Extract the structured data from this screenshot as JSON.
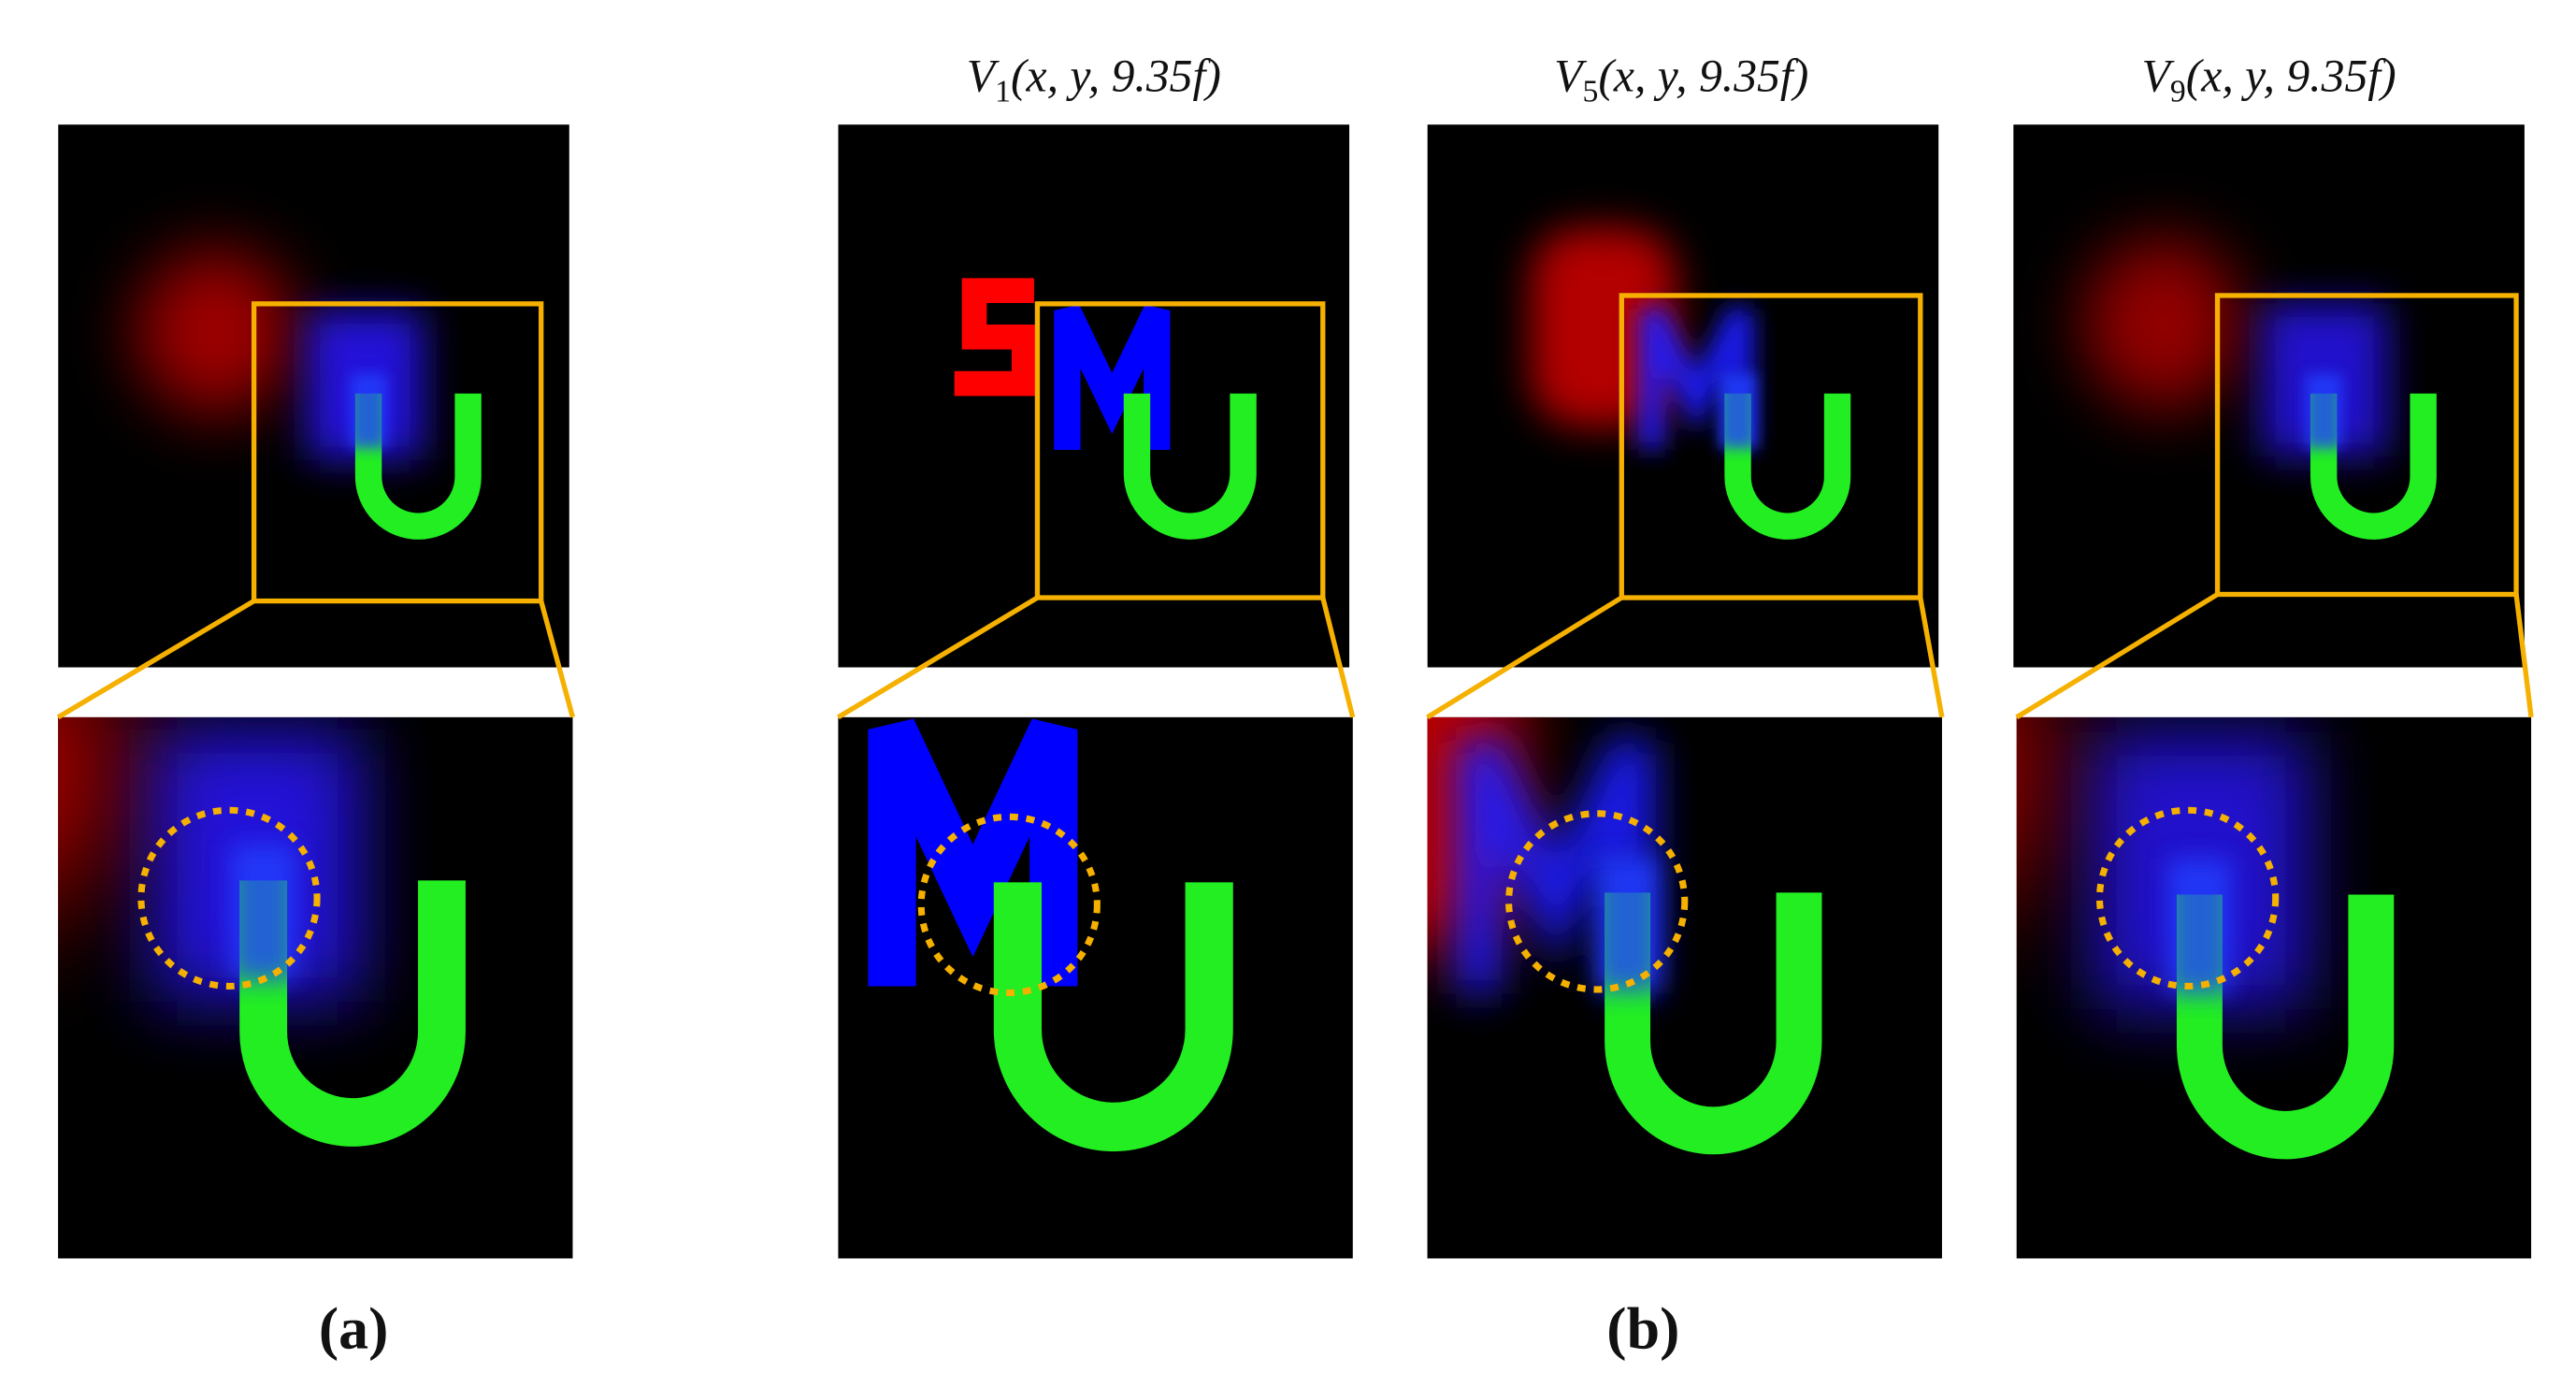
{
  "titles": [
    {
      "symbol": "V",
      "subscript": "1",
      "args": "(x, y, 9.35f)"
    },
    {
      "symbol": "V",
      "subscript": "5",
      "args": "(x, y, 9.35f)"
    },
    {
      "symbol": "V",
      "subscript": "9",
      "args": "(x, y, 9.35f)"
    }
  ],
  "labels": [
    "(a)",
    "(b)"
  ]
}
